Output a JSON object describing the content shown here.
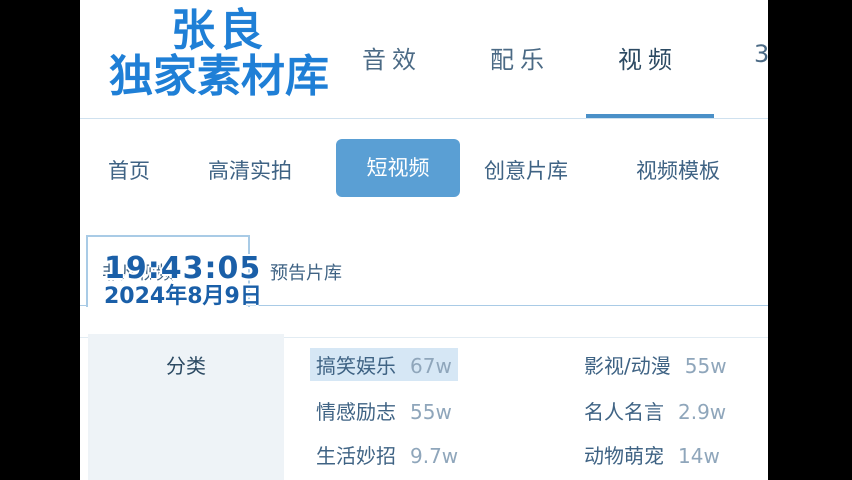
{
  "watermark": {
    "line1": "张良",
    "line2": "独家素材库"
  },
  "top_tabs": [
    {
      "label": "音效"
    },
    {
      "label": "配乐"
    },
    {
      "label": "视频"
    },
    {
      "label": "3"
    }
  ],
  "sub_tabs": [
    {
      "label": "首页"
    },
    {
      "label": "高清实拍"
    },
    {
      "label": "短视频"
    },
    {
      "label": "创意片库"
    },
    {
      "label": "视频模板"
    }
  ],
  "tertiary_tabs": [
    {
      "label": "非凡视频"
    },
    {
      "label": "预告片库"
    }
  ],
  "clock": {
    "time": "19:43:05",
    "date": "2024年8月9日"
  },
  "category": {
    "title": "分类",
    "items": [
      {
        "name": "搞笑娱乐",
        "count": "67w"
      },
      {
        "name": "影视/动漫",
        "count": "55w"
      },
      {
        "name": "情感励志",
        "count": "55w"
      },
      {
        "name": "名人名言",
        "count": "2.9w"
      },
      {
        "name": "生活妙招",
        "count": "9.7w"
      },
      {
        "name": "动物萌宠",
        "count": "14w"
      }
    ]
  },
  "colors": {
    "accent": "#5a9fd4",
    "underline": "#4a90c8",
    "watermark": "#1f7fd6"
  }
}
